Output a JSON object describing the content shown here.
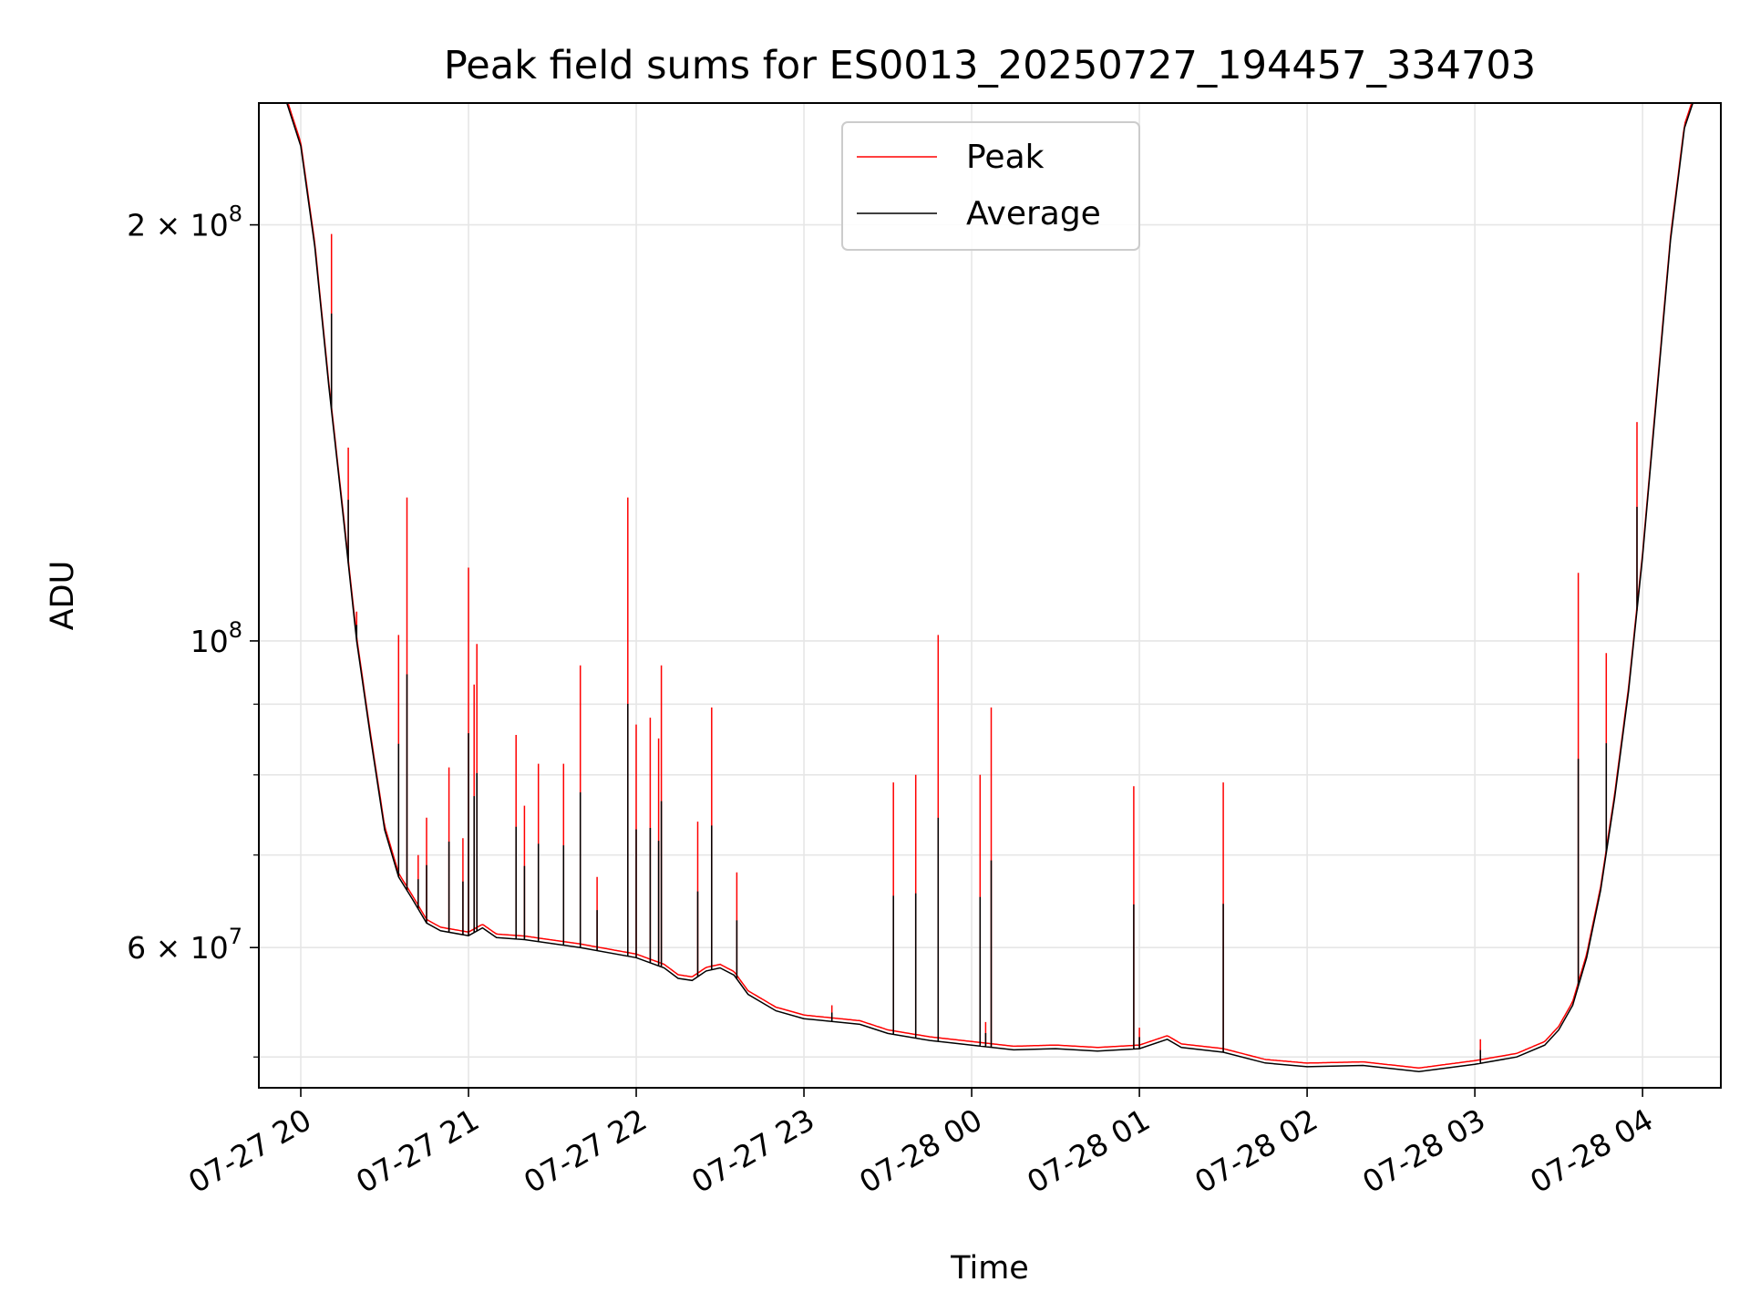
{
  "chart_data": {
    "type": "line",
    "title": "Peak field sums for ES0013_20250727_194457_334703",
    "xlabel": "Time",
    "ylabel": "ADU",
    "y_scale": "log",
    "ylim": [
      47500000,
      245000000
    ],
    "xlim": [
      "2025-07-27 19:45",
      "2025-07-28 04:28"
    ],
    "grid": true,
    "legend": "upper center",
    "x_ticks": [
      {
        "t": "2025-07-27 20:00",
        "label": "07-27 20"
      },
      {
        "t": "2025-07-27 21:00",
        "label": "07-27 21"
      },
      {
        "t": "2025-07-27 22:00",
        "label": "07-27 22"
      },
      {
        "t": "2025-07-27 23:00",
        "label": "07-27 23"
      },
      {
        "t": "2025-07-28 00:00",
        "label": "07-28 00"
      },
      {
        "t": "2025-07-28 01:00",
        "label": "07-28 01"
      },
      {
        "t": "2025-07-28 02:00",
        "label": "07-28 02"
      },
      {
        "t": "2025-07-28 03:00",
        "label": "07-28 03"
      },
      {
        "t": "2025-07-28 04:00",
        "label": "07-28 04"
      }
    ],
    "y_ticks": [
      {
        "value": 60000000,
        "base": "6 × 10",
        "exp": "7"
      },
      {
        "value": 100000000,
        "base": "10",
        "exp": "8"
      },
      {
        "value": 200000000,
        "base": "2 × 10",
        "exp": "8"
      }
    ],
    "y_minor_ticks": [
      50000000,
      70000000,
      80000000,
      90000000
    ],
    "series": [
      {
        "name": "Average",
        "color": "#000000",
        "points": [
          [
            "2025-07-27 19:45",
            245000000
          ],
          [
            "2025-07-27 19:55",
            245000000
          ],
          [
            "2025-07-27 20:00",
            228000000
          ],
          [
            "2025-07-27 20:05",
            193000000
          ],
          [
            "2025-07-27 20:10",
            153000000
          ],
          [
            "2025-07-27 20:15",
            124000000
          ],
          [
            "2025-07-27 20:20",
            100000000
          ],
          [
            "2025-07-27 20:25",
            85000000
          ],
          [
            "2025-07-27 20:30",
            73000000
          ],
          [
            "2025-07-27 20:35",
            67500000
          ],
          [
            "2025-07-27 20:40",
            65000000
          ],
          [
            "2025-07-27 20:45",
            62500000
          ],
          [
            "2025-07-27 20:50",
            61700000
          ],
          [
            "2025-07-27 21:00",
            61200000
          ],
          [
            "2025-07-27 21:05",
            62000000
          ],
          [
            "2025-07-27 21:10",
            61000000
          ],
          [
            "2025-07-27 21:20",
            60800000
          ],
          [
            "2025-07-27 21:40",
            60000000
          ],
          [
            "2025-07-27 22:00",
            59000000
          ],
          [
            "2025-07-27 22:10",
            58000000
          ],
          [
            "2025-07-27 22:15",
            57000000
          ],
          [
            "2025-07-27 22:20",
            56800000
          ],
          [
            "2025-07-27 22:25",
            57700000
          ],
          [
            "2025-07-27 22:30",
            58000000
          ],
          [
            "2025-07-27 22:35",
            57300000
          ],
          [
            "2025-07-27 22:40",
            55500000
          ],
          [
            "2025-07-27 22:50",
            54000000
          ],
          [
            "2025-07-27 23:00",
            53300000
          ],
          [
            "2025-07-27 23:20",
            52800000
          ],
          [
            "2025-07-27 23:30",
            52000000
          ],
          [
            "2025-07-27 23:45",
            51400000
          ],
          [
            "2025-07-28 00:00",
            51000000
          ],
          [
            "2025-07-28 00:15",
            50600000
          ],
          [
            "2025-07-28 00:30",
            50700000
          ],
          [
            "2025-07-28 00:45",
            50500000
          ],
          [
            "2025-07-28 01:00",
            50700000
          ],
          [
            "2025-07-28 01:10",
            51500000
          ],
          [
            "2025-07-28 01:15",
            50800000
          ],
          [
            "2025-07-28 01:30",
            50400000
          ],
          [
            "2025-07-28 01:45",
            49500000
          ],
          [
            "2025-07-28 02:00",
            49200000
          ],
          [
            "2025-07-28 02:20",
            49300000
          ],
          [
            "2025-07-28 02:40",
            48800000
          ],
          [
            "2025-07-28 03:00",
            49400000
          ],
          [
            "2025-07-28 03:15",
            50000000
          ],
          [
            "2025-07-28 03:25",
            51000000
          ],
          [
            "2025-07-28 03:30",
            52300000
          ],
          [
            "2025-07-28 03:35",
            54500000
          ],
          [
            "2025-07-28 03:40",
            59000000
          ],
          [
            "2025-07-28 03:45",
            66000000
          ],
          [
            "2025-07-28 03:50",
            77000000
          ],
          [
            "2025-07-28 03:55",
            92000000
          ],
          [
            "2025-07-28 04:00",
            115000000
          ],
          [
            "2025-07-28 04:05",
            150000000
          ],
          [
            "2025-07-28 04:10",
            195000000
          ],
          [
            "2025-07-28 04:15",
            235000000
          ],
          [
            "2025-07-28 04:18",
            245000000
          ],
          [
            "2025-07-28 04:28",
            245000000
          ]
        ]
      },
      {
        "name": "Peak",
        "color": "#ff0000",
        "spikes": [
          [
            "2025-07-27 20:11",
            197000000
          ],
          [
            "2025-07-27 20:17",
            138000000
          ],
          [
            "2025-07-27 20:20",
            105000000
          ],
          [
            "2025-07-27 20:35",
            101000000
          ],
          [
            "2025-07-27 20:35",
            94000000
          ],
          [
            "2025-07-27 20:38",
            127000000
          ],
          [
            "2025-07-27 20:42",
            70000000
          ],
          [
            "2025-07-27 20:45",
            74500000
          ],
          [
            "2025-07-27 20:53",
            81000000
          ],
          [
            "2025-07-27 20:58",
            72000000
          ],
          [
            "2025-07-27 21:00",
            113000000
          ],
          [
            "2025-07-27 21:02",
            93000000
          ],
          [
            "2025-07-27 21:03",
            99500000
          ],
          [
            "2025-07-27 21:17",
            85500000
          ],
          [
            "2025-07-27 21:20",
            76000000
          ],
          [
            "2025-07-27 21:25",
            81500000
          ],
          [
            "2025-07-27 21:34",
            81500000
          ],
          [
            "2025-07-27 21:40",
            96000000
          ],
          [
            "2025-07-27 21:46",
            67500000
          ],
          [
            "2025-07-27 21:57",
            127000000
          ],
          [
            "2025-07-27 22:00",
            87000000
          ],
          [
            "2025-07-27 22:05",
            88000000
          ],
          [
            "2025-07-27 22:08",
            85000000
          ],
          [
            "2025-07-27 22:09",
            96000000
          ],
          [
            "2025-07-27 22:22",
            74000000
          ],
          [
            "2025-07-27 22:27",
            89500000
          ],
          [
            "2025-07-27 22:36",
            68000000
          ],
          [
            "2025-07-27 23:10",
            54500000
          ],
          [
            "2025-07-27 23:32",
            79000000
          ],
          [
            "2025-07-27 23:40",
            80000000
          ],
          [
            "2025-07-27 23:48",
            101000000
          ],
          [
            "2025-07-28 00:03",
            80000000
          ],
          [
            "2025-07-28 00:05",
            53000000
          ],
          [
            "2025-07-28 00:07",
            89500000
          ],
          [
            "2025-07-28 00:58",
            78500000
          ],
          [
            "2025-07-28 01:00",
            52500000
          ],
          [
            "2025-07-28 01:30",
            79000000
          ],
          [
            "2025-07-28 03:02",
            51500000
          ],
          [
            "2025-07-28 03:37",
            112000000
          ],
          [
            "2025-07-28 03:47",
            98000000
          ],
          [
            "2025-07-28 03:58",
            144000000
          ]
        ]
      }
    ]
  }
}
